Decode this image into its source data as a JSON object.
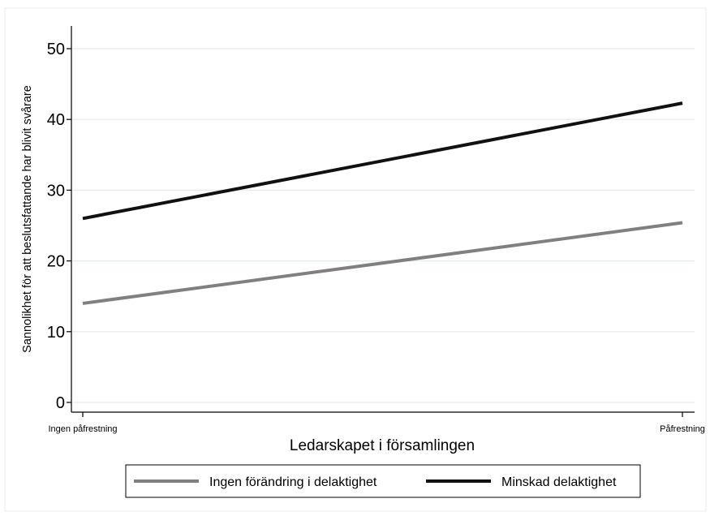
{
  "chart_data": {
    "type": "line",
    "title": "",
    "xlabel": "Ledarskapet i församlingen",
    "ylabel": "Sannolikhet för att beslutsfattande har blivit svårare",
    "categories": [
      "Ingen påfrestning",
      "Påfrestning"
    ],
    "ylim": [
      0,
      53
    ],
    "yticks": [
      0,
      10,
      20,
      30,
      40,
      50
    ],
    "grid": true,
    "legend_position": "bottom",
    "series": [
      {
        "name": "Ingen förändring i delaktighet",
        "values": [
          14.0,
          25.4
        ],
        "color": "#808080"
      },
      {
        "name": "Minskad delaktighet",
        "values": [
          26.0,
          42.3
        ],
        "color": "#111111"
      }
    ]
  }
}
